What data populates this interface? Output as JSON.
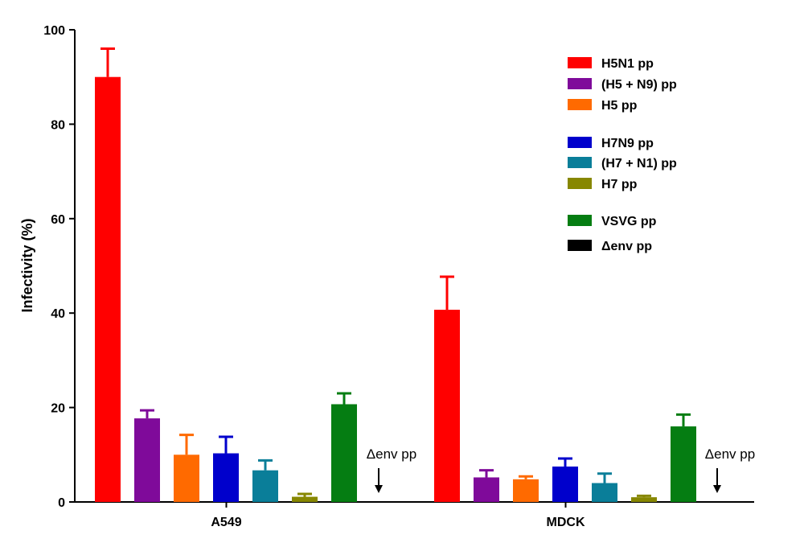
{
  "chart_data": {
    "type": "bar",
    "ylabel": "Infectivity (%)",
    "xlabel": "",
    "ylim": [
      0,
      100
    ],
    "yticks": [
      0,
      20,
      40,
      60,
      80,
      100
    ],
    "categories": [
      "A549",
      "MDCK"
    ],
    "legend_position": "top-right",
    "series": [
      {
        "name": "H5N1 pp",
        "color": "#ff0000",
        "values": [
          90,
          40.7
        ],
        "errors": [
          6,
          7
        ]
      },
      {
        "name": "(H5 + N9) pp",
        "color": "#7f0a9a",
        "values": [
          17.7,
          5.2
        ],
        "errors": [
          1.7,
          1.5
        ]
      },
      {
        "name": "H5 pp",
        "color": "#ff6a00",
        "values": [
          10,
          4.8
        ],
        "errors": [
          4.2,
          0.6
        ]
      },
      {
        "name": "H7N9 pp",
        "color": "#0000cc",
        "values": [
          10.3,
          7.5
        ],
        "errors": [
          3.5,
          1.7
        ]
      },
      {
        "name": "(H7 + N1) pp",
        "color": "#0a7e99",
        "values": [
          6.7,
          4
        ],
        "errors": [
          2.1,
          2
        ]
      },
      {
        "name": "H7 pp",
        "color": "#878700",
        "values": [
          1.1,
          1
        ],
        "errors": [
          0.6,
          0.3
        ]
      },
      {
        "name": "VSVG pp",
        "color": "#057d12",
        "values": [
          20.7,
          16
        ],
        "errors": [
          2.3,
          2.5
        ]
      },
      {
        "name": "Δenv pp",
        "color": "#000000",
        "values": [
          0,
          0
        ],
        "errors": [
          0,
          0
        ]
      }
    ],
    "annotations": [
      {
        "category": "A549",
        "text": "Δenv pp"
      },
      {
        "category": "MDCK",
        "text": "Δenv pp"
      }
    ]
  }
}
